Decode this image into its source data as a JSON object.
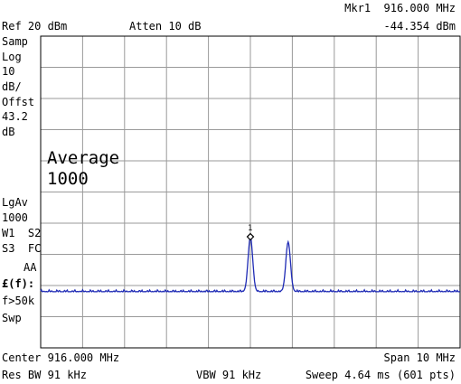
{
  "header": {
    "ref_level": "Ref 20 dBm",
    "attenuation": "Atten 10 dB",
    "marker_label": "Mkr1  916.000 MHz",
    "marker_amplitude": "-44.354 dBm"
  },
  "left_panel": {
    "detector": "Samp",
    "scale": "Log",
    "scale_value": "10",
    "scale_unit": "dB/",
    "offset_label": "Offst",
    "offset_value": "43.2",
    "offset_unit": "dB",
    "avg_type": "LgAv",
    "avg_count": "1000",
    "trace_line1": "W1  S2",
    "trace_line2": "S3  FC",
    "trace_line3": "AA",
    "freq_corr": "£(f):",
    "freq_cond": "f>50k",
    "sweep_mode": "Swp"
  },
  "average_overlay": {
    "label": "Average",
    "count": "1000"
  },
  "marker": {
    "number": "1",
    "frequency_mhz": 916.0,
    "amplitude_dbm": -44.354
  },
  "footer": {
    "center": "Center 916.000 MHz",
    "span": "Span 10 MHz",
    "res_bw": "Res BW 91 kHz",
    "vbw": "VBW 91 kHz",
    "sweep": "Sweep 4.64 ms (601 pts)"
  },
  "colors": {
    "trace": "#1f2bb5",
    "grid": "#9a9a9a",
    "frame": "#000000"
  },
  "chart_data": {
    "type": "line",
    "x_unit": "MHz",
    "y_unit": "dBm",
    "xlim": [
      911.0,
      921.0
    ],
    "ylim": [
      -80,
      20
    ],
    "grid": true,
    "noise_floor_dbm": -62.0,
    "peaks": [
      {
        "x": 916.0,
        "y": -44.354
      },
      {
        "x": 916.9,
        "y": -46.0
      }
    ]
  }
}
